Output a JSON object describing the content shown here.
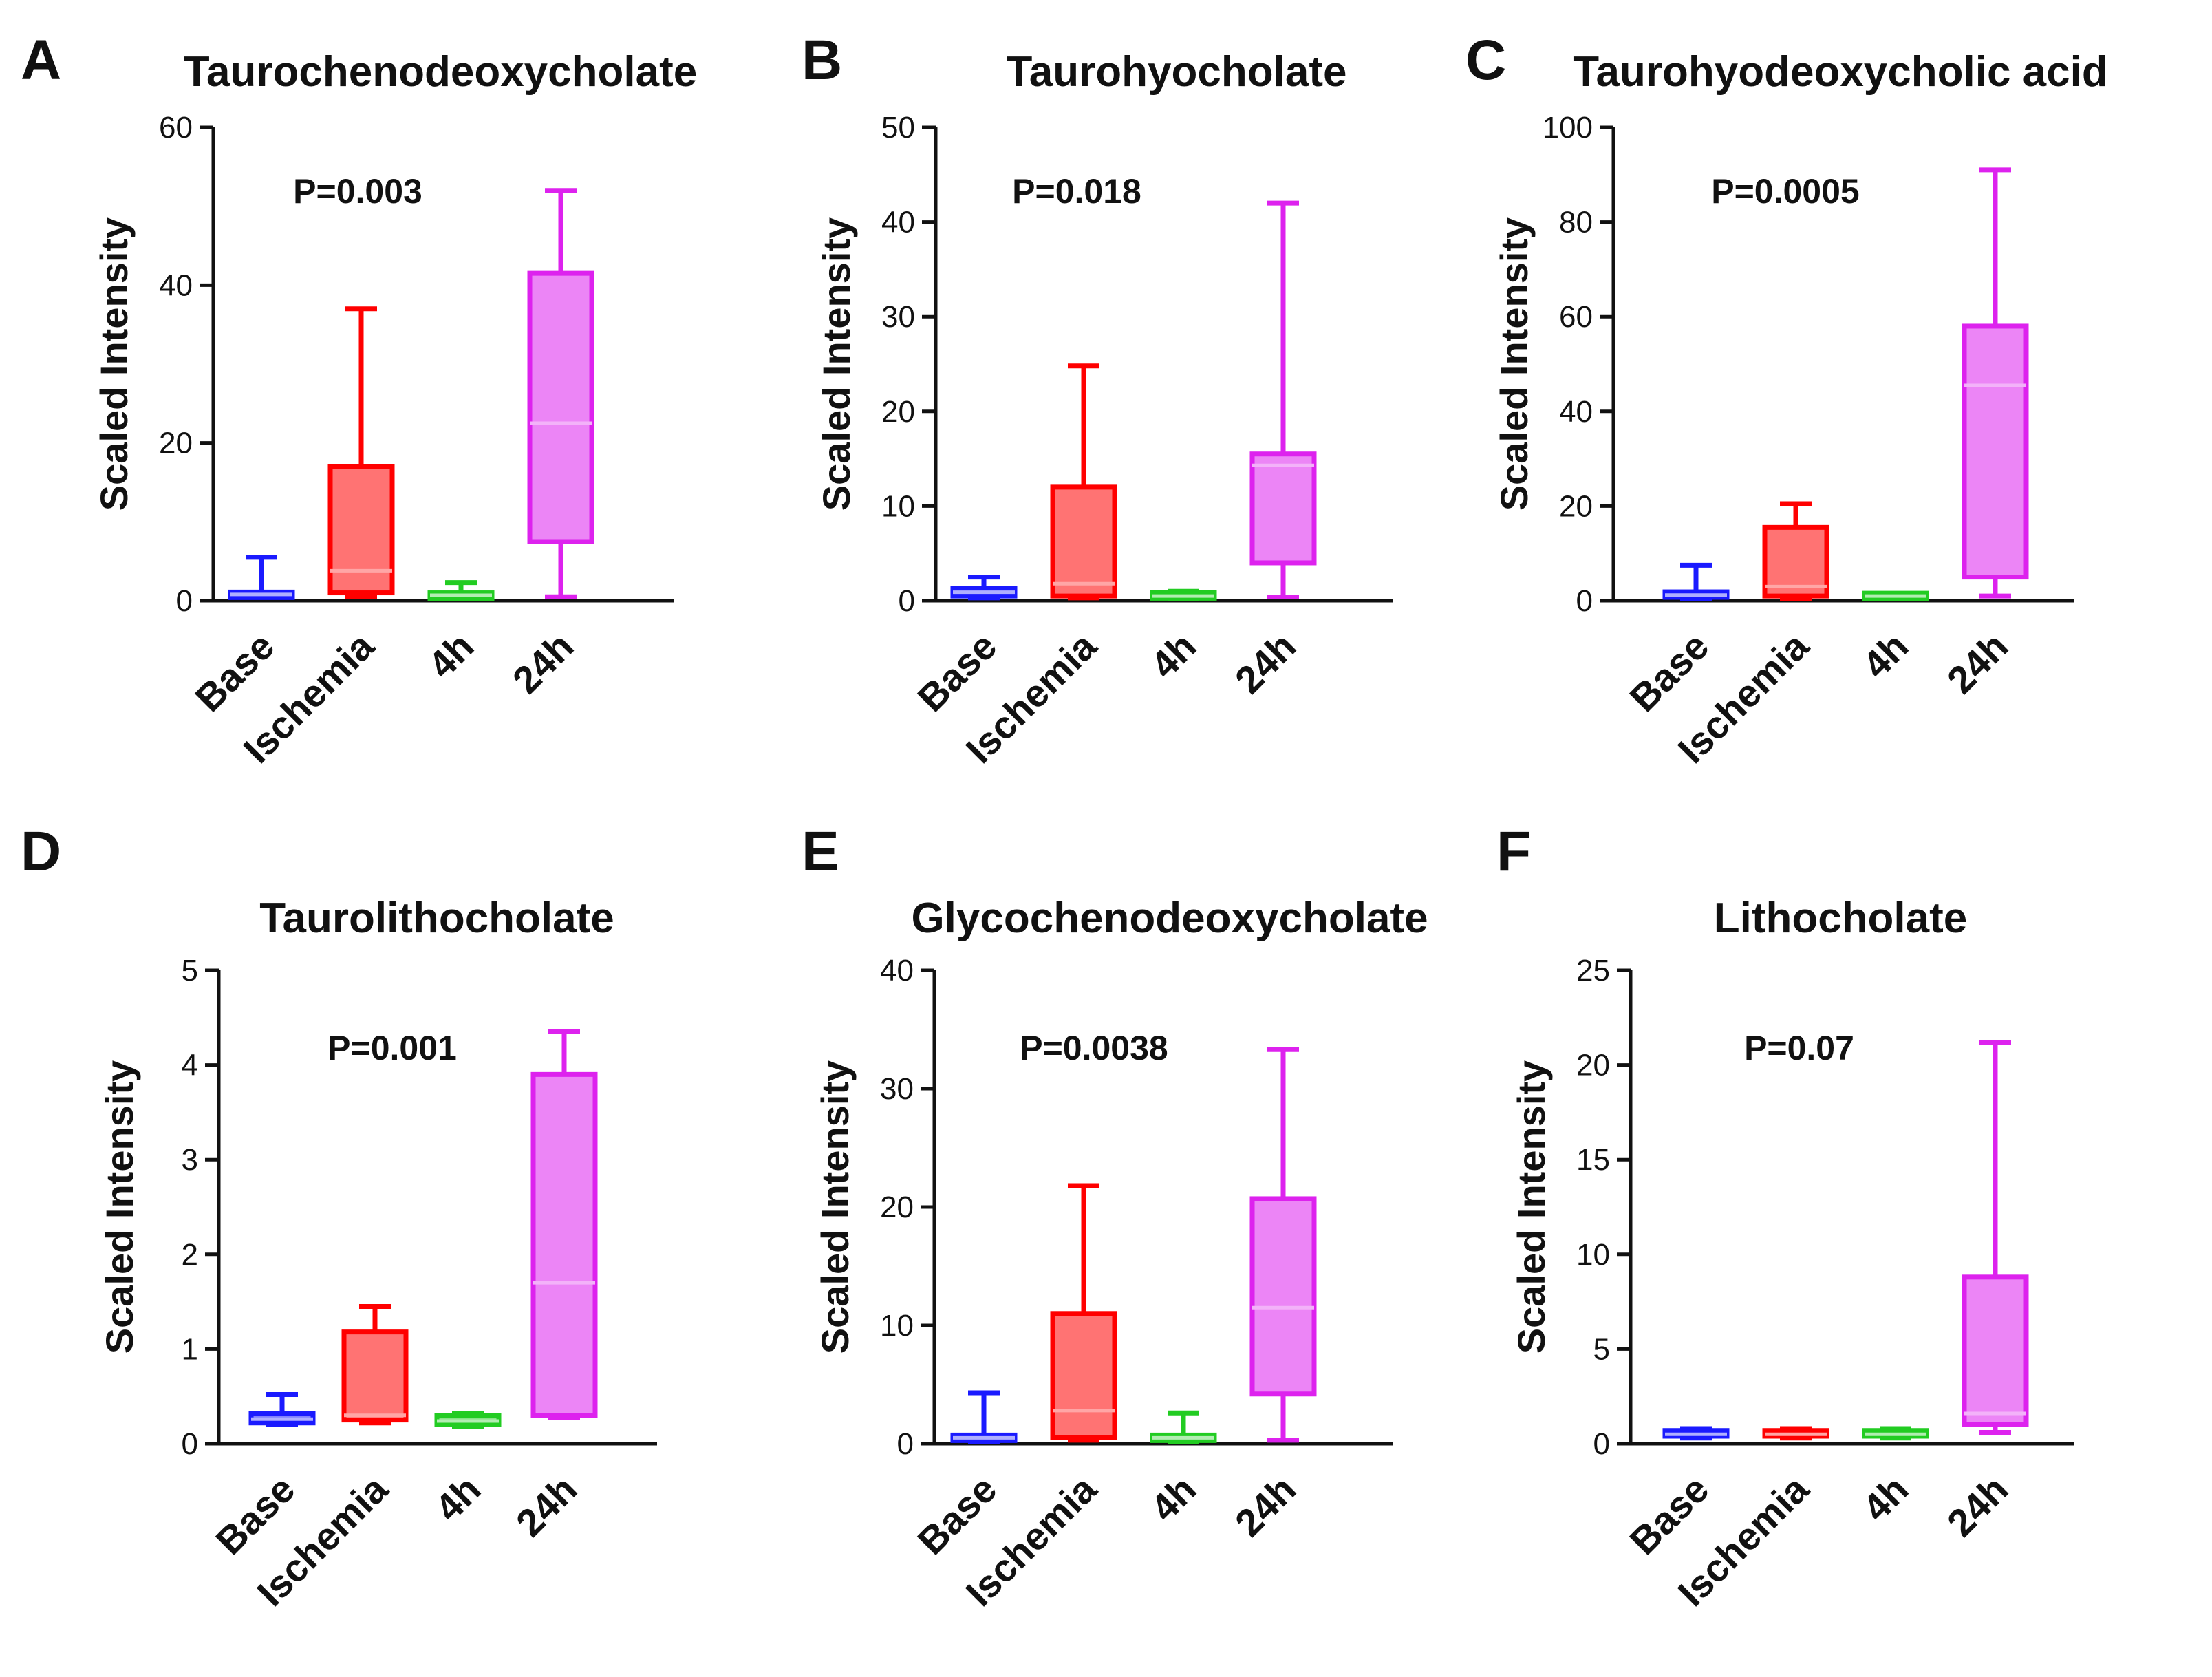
{
  "chart_data": [
    {
      "panel": "A",
      "type": "box",
      "title": "Taurochenodeoxycholate",
      "ylabel": "Scaled Intensity",
      "ylim": [
        0,
        60
      ],
      "yticks": [
        0,
        20,
        40,
        60
      ],
      "p_value": "P=0.003",
      "categories": [
        "Base",
        "Ischemia",
        "4h",
        "24h"
      ],
      "colors": [
        "#1a1aff",
        "#ff0000",
        "#22cc22",
        "#dd22ee"
      ],
      "boxes": [
        {
          "min": 0.5,
          "q1": 0.5,
          "median": 0.8,
          "q3": 1.0,
          "max": 5.5
        },
        {
          "min": 0.5,
          "q1": 1.0,
          "median": 3.8,
          "q3": 17.0,
          "max": 37.0
        },
        {
          "min": 0.3,
          "q1": 0.4,
          "median": 0.7,
          "q3": 0.9,
          "max": 2.3
        },
        {
          "min": 0.5,
          "q1": 7.5,
          "median": 22.5,
          "q3": 41.5,
          "max": 52.0
        }
      ]
    },
    {
      "panel": "B",
      "type": "box",
      "title": "Taurohyocholate",
      "ylabel": "Scaled Intensity",
      "ylim": [
        0,
        50
      ],
      "yticks": [
        0,
        10,
        20,
        30,
        40,
        50
      ],
      "p_value": "P=0.018",
      "categories": [
        "Base",
        "Ischemia",
        "4h",
        "24h"
      ],
      "colors": [
        "#1a1aff",
        "#ff0000",
        "#22cc22",
        "#dd22ee"
      ],
      "boxes": [
        {
          "min": 0.3,
          "q1": 0.5,
          "median": 0.9,
          "q3": 1.3,
          "max": 2.5
        },
        {
          "min": 0.3,
          "q1": 0.5,
          "median": 1.8,
          "q3": 12.0,
          "max": 24.8
        },
        {
          "min": 0.2,
          "q1": 0.3,
          "median": 0.5,
          "q3": 0.8,
          "max": 1.0
        },
        {
          "min": 0.4,
          "q1": 4.0,
          "median": 14.3,
          "q3": 15.5,
          "max": 42.0
        }
      ]
    },
    {
      "panel": "C",
      "type": "box",
      "title": "Taurohyodeoxycholic acid",
      "ylabel": "Scaled Intensity",
      "ylim": [
        0,
        100
      ],
      "yticks": [
        0,
        20,
        40,
        60,
        80,
        100
      ],
      "p_value": "P=0.0005",
      "categories": [
        "Base",
        "Ischemia",
        "4h",
        "24h"
      ],
      "colors": [
        "#1a1aff",
        "#ff0000",
        "#22cc22",
        "#dd22ee"
      ],
      "boxes": [
        {
          "min": 0.5,
          "q1": 0.8,
          "median": 1.2,
          "q3": 1.8,
          "max": 7.5
        },
        {
          "min": 0.5,
          "q1": 1.0,
          "median": 3.0,
          "q3": 15.5,
          "max": 20.5
        },
        {
          "min": 0.5,
          "q1": 0.7,
          "median": 1.0,
          "q3": 1.3,
          "max": 1.5
        },
        {
          "min": 1.0,
          "q1": 5.0,
          "median": 45.5,
          "q3": 58.0,
          "max": 91.0
        }
      ]
    },
    {
      "panel": "D",
      "type": "box",
      "title": "Taurolithocholate",
      "ylabel": "Scaled Intensity",
      "ylim": [
        0,
        5
      ],
      "yticks": [
        0,
        1,
        2,
        3,
        4,
        5
      ],
      "p_value": "P=0.001",
      "categories": [
        "Base",
        "Ischemia",
        "4h",
        "24h"
      ],
      "colors": [
        "#1a1aff",
        "#ff0000",
        "#22cc22",
        "#dd22ee"
      ],
      "boxes": [
        {
          "min": 0.2,
          "q1": 0.22,
          "median": 0.26,
          "q3": 0.32,
          "max": 0.52
        },
        {
          "min": 0.22,
          "q1": 0.25,
          "median": 0.3,
          "q3": 1.18,
          "max": 1.45
        },
        {
          "min": 0.18,
          "q1": 0.2,
          "median": 0.24,
          "q3": 0.3,
          "max": 0.32
        },
        {
          "min": 0.28,
          "q1": 0.3,
          "median": 1.7,
          "q3": 3.9,
          "max": 4.35
        }
      ]
    },
    {
      "panel": "E",
      "type": "box",
      "title": "Glycochenodeoxycholate",
      "ylabel": "Scaled Intensity",
      "ylim": [
        0,
        40
      ],
      "yticks": [
        0,
        10,
        20,
        30,
        40
      ],
      "p_value": "P=0.0038",
      "categories": [
        "Base",
        "Ischemia",
        "4h",
        "24h"
      ],
      "colors": [
        "#1a1aff",
        "#ff0000",
        "#22cc22",
        "#dd22ee"
      ],
      "boxes": [
        {
          "min": 0.2,
          "q1": 0.3,
          "median": 0.5,
          "q3": 0.7,
          "max": 4.3
        },
        {
          "min": 0.3,
          "q1": 0.5,
          "median": 2.8,
          "q3": 11.0,
          "max": 21.8
        },
        {
          "min": 0.2,
          "q1": 0.3,
          "median": 0.5,
          "q3": 0.7,
          "max": 2.6
        },
        {
          "min": 0.3,
          "q1": 4.2,
          "median": 11.5,
          "q3": 20.7,
          "max": 33.3
        }
      ]
    },
    {
      "panel": "F",
      "type": "box",
      "title": "Lithocholate",
      "ylabel": "Scaled Intensity",
      "ylim": [
        0,
        25
      ],
      "yticks": [
        0,
        5,
        10,
        15,
        20,
        25
      ],
      "p_value": "P=0.07",
      "categories": [
        "Base",
        "Ischemia",
        "4h",
        "24h"
      ],
      "colors": [
        "#1a1aff",
        "#ff0000",
        "#22cc22",
        "#dd22ee"
      ],
      "boxes": [
        {
          "min": 0.3,
          "q1": 0.4,
          "median": 0.5,
          "q3": 0.7,
          "max": 0.8
        },
        {
          "min": 0.3,
          "q1": 0.4,
          "median": 0.5,
          "q3": 0.7,
          "max": 0.8
        },
        {
          "min": 0.3,
          "q1": 0.4,
          "median": 0.5,
          "q3": 0.7,
          "max": 0.8
        },
        {
          "min": 0.6,
          "q1": 1.0,
          "median": 1.6,
          "q3": 8.8,
          "max": 21.2
        }
      ]
    }
  ]
}
